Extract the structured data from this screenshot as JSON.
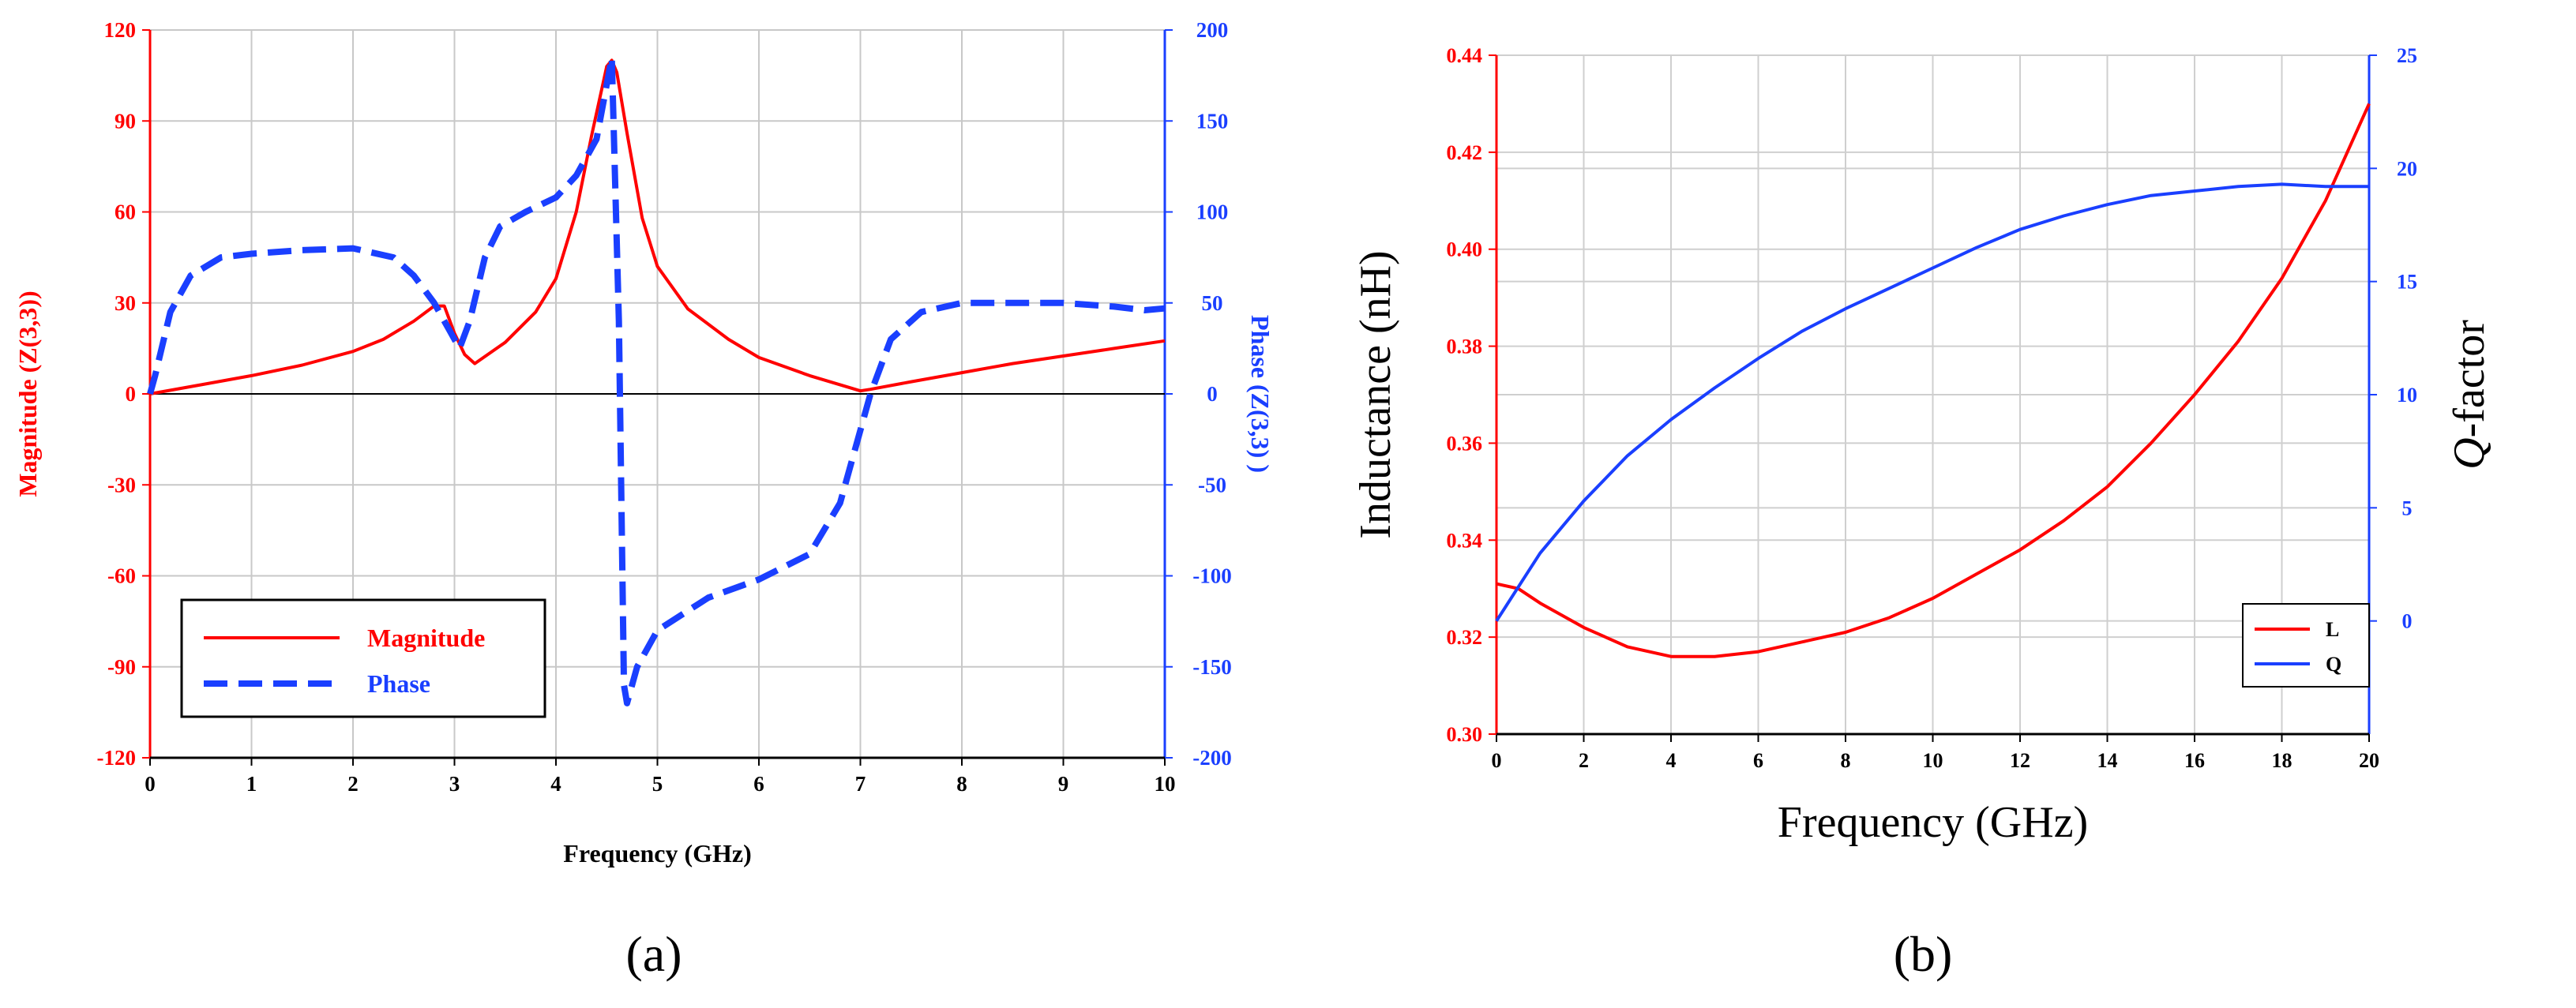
{
  "chart_data": [
    {
      "panel": "(a)",
      "type": "line",
      "title": "",
      "xlabel": "Frequency (GHz)",
      "ylabel": "Magnitude (Z(3,3))",
      "y2label": "Phase (Z(3,3) )",
      "xlim": [
        0,
        10
      ],
      "ylim": [
        -120,
        120
      ],
      "y2lim": [
        -200,
        200
      ],
      "xticks": [
        "0",
        "1",
        "2",
        "3",
        "4",
        "5",
        "6",
        "7",
        "8",
        "9",
        "10"
      ],
      "yticks": [
        "-120",
        "-90",
        "-60",
        "-30",
        "0",
        "30",
        "60",
        "90",
        "120"
      ],
      "y2ticks": [
        "-200",
        "-150",
        "-100",
        "-50",
        "0",
        "50",
        "100",
        "150",
        "200"
      ],
      "grid": true,
      "legend_position": "bottom-left",
      "series": [
        {
          "name": "Magnitude",
          "axis": "left",
          "color": "#ff0000",
          "style": "solid",
          "x": [
            0,
            0.5,
            1,
            1.5,
            2,
            2.3,
            2.6,
            2.8,
            2.9,
            3.0,
            3.1,
            3.2,
            3.5,
            3.8,
            4.0,
            4.2,
            4.35,
            4.5,
            4.55,
            4.6,
            4.7,
            4.85,
            5.0,
            5.3,
            5.7,
            6.0,
            6.5,
            6.9,
            7.0,
            7.1,
            7.5,
            8.0,
            8.5,
            9.0,
            9.5,
            10.0
          ],
          "y": [
            0,
            3,
            6,
            9.5,
            14,
            18,
            24,
            29,
            29,
            20,
            13,
            10,
            17,
            27,
            38,
            60,
            85,
            108,
            110,
            106,
            86,
            58,
            42,
            28,
            18,
            12,
            6,
            2,
            1,
            1.5,
            4,
            7,
            10,
            12.5,
            15,
            17.5
          ]
        },
        {
          "name": "Phase",
          "axis": "right",
          "color": "#1a3fff",
          "style": "dashed",
          "x": [
            0,
            0.05,
            0.2,
            0.4,
            0.7,
            1.0,
            1.5,
            2.0,
            2.4,
            2.6,
            2.8,
            2.95,
            3.05,
            3.15,
            3.3,
            3.45,
            3.7,
            4.0,
            4.2,
            4.4,
            4.55,
            4.62,
            4.67,
            4.7,
            4.8,
            5.0,
            5.5,
            6.0,
            6.5,
            6.8,
            7.0,
            7.1,
            7.3,
            7.6,
            8.0,
            8.5,
            9.0,
            9.5,
            9.8,
            10.0
          ],
          "y": [
            0,
            10,
            45,
            65,
            75,
            77,
            79,
            80,
            75,
            65,
            50,
            35,
            25,
            40,
            75,
            92,
            100,
            108,
            120,
            140,
            185,
            40,
            -160,
            -170,
            -150,
            -130,
            -112,
            -102,
            -88,
            -60,
            -20,
            0,
            30,
            45,
            50,
            50,
            50,
            48,
            46,
            47
          ]
        }
      ],
      "legend": [
        {
          "name": "Magnitude",
          "color": "#ff0000",
          "style": "solid"
        },
        {
          "name": "Phase",
          "color": "#1a3fff",
          "style": "dashed"
        }
      ]
    },
    {
      "panel": "(b)",
      "type": "line",
      "title": "",
      "xlabel": "Frequency (GHz)",
      "ylabel": "Inductance (nH)",
      "y2label_prefix": "Q",
      "y2label_suffix": "-factor",
      "xlim": [
        0,
        20
      ],
      "ylim": [
        0.3,
        0.44
      ],
      "y2lim": [
        -5,
        25
      ],
      "xticks": [
        "0",
        "2",
        "4",
        "6",
        "8",
        "10",
        "12",
        "14",
        "16",
        "18",
        "20"
      ],
      "yticks": [
        "0.30",
        "0.32",
        "0.34",
        "0.36",
        "0.38",
        "0.40",
        "0.42",
        "0.44"
      ],
      "y2ticks": [
        "0",
        "5",
        "10",
        "15",
        "20",
        "25"
      ],
      "grid": true,
      "legend_position": "right-middle",
      "series": [
        {
          "name": "L",
          "axis": "left",
          "color": "#ff0000",
          "style": "solid",
          "x": [
            0,
            0.5,
            1,
            2,
            3,
            4,
            5,
            6,
            7,
            8,
            9,
            10,
            11,
            12,
            13,
            14,
            15,
            16,
            17,
            18,
            19,
            20
          ],
          "y": [
            0.331,
            0.33,
            0.327,
            0.322,
            0.318,
            0.316,
            0.316,
            0.317,
            0.319,
            0.321,
            0.324,
            0.328,
            0.333,
            0.338,
            0.344,
            0.351,
            0.36,
            0.37,
            0.381,
            0.394,
            0.41,
            0.43
          ]
        },
        {
          "name": "Q",
          "axis": "right",
          "color": "#1a3fff",
          "style": "solid",
          "x": [
            0,
            0.5,
            1,
            2,
            3,
            4,
            5,
            6,
            7,
            8,
            9,
            10,
            11,
            12,
            13,
            14,
            15,
            16,
            17,
            18,
            19,
            20
          ],
          "y": [
            0,
            1.5,
            3.0,
            5.3,
            7.3,
            8.9,
            10.3,
            11.6,
            12.8,
            13.8,
            14.7,
            15.6,
            16.5,
            17.3,
            17.9,
            18.4,
            18.8,
            19.0,
            19.2,
            19.3,
            19.2,
            19.2
          ]
        }
      ],
      "legend": [
        {
          "name": "L",
          "color": "#ff0000"
        },
        {
          "name": "Q",
          "color": "#1a3fff"
        }
      ]
    }
  ],
  "captions": [
    "(a)",
    "(b)"
  ]
}
